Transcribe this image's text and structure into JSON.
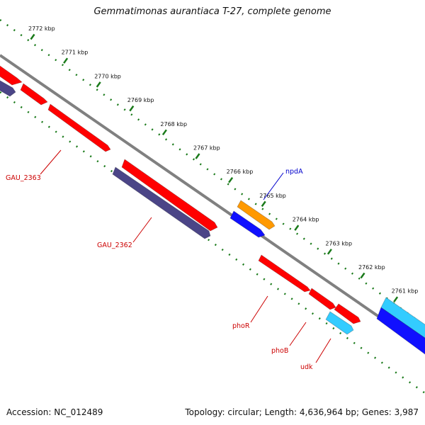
{
  "title": "Gemmatimonas aurantiaca T-27, complete genome",
  "footer": {
    "accession": "Accession: NC_012489",
    "summary": "Topology: circular; Length: 4,636,964 bp; Genes: 3,987"
  },
  "colors": {
    "backbone": "#808080",
    "tick": "#1a7a1a",
    "red_gene": "#ff0000",
    "purple_gene": "#4b4587",
    "orange_gene": "#ff9900",
    "blue_gene": "#1010ff",
    "cyan_gene": "#33ccff",
    "red_label": "#cc0000",
    "blue_label": "#0000cc"
  },
  "ticks": [
    "2772 kbp",
    "2771 kbp",
    "2770 kbp",
    "2769 kbp",
    "2768 kbp",
    "2767 kbp",
    "2766 kbp",
    "2765 kbp",
    "2764 kbp",
    "2763 kbp",
    "2762 kbp",
    "2761 kbp"
  ],
  "gene_labels": [
    "GAU_2363",
    "GAU_2362",
    "npdA",
    "phoR",
    "phoB",
    "udk"
  ]
}
